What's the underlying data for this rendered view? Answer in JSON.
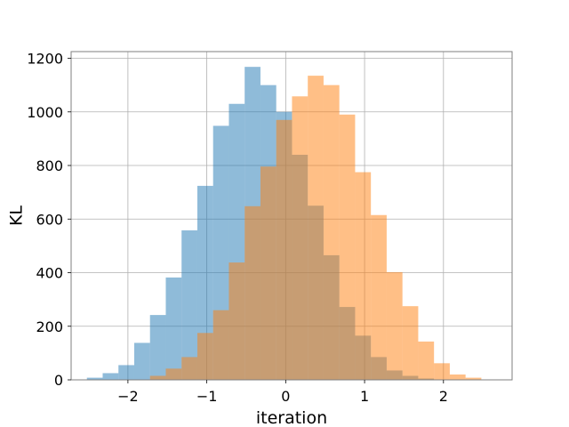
{
  "chart_data": {
    "type": "bar",
    "title": "",
    "xlabel": "iteration",
    "ylabel": "KL",
    "xlim": [
      -2.72,
      2.87
    ],
    "ylim": [
      0,
      1225
    ],
    "xticks": [
      -2,
      -1,
      0,
      1,
      2
    ],
    "xtick_labels": [
      "−2",
      "−1",
      "0",
      "1",
      "2"
    ],
    "yticks": [
      0,
      200,
      400,
      600,
      800,
      1000,
      1200
    ],
    "ytick_labels": [
      "0",
      "200",
      "400",
      "600",
      "800",
      "1000",
      "1200"
    ],
    "grid": true,
    "legend": "none",
    "series": [
      {
        "color": "#1f77b4",
        "opacity": 0.5,
        "bins": [
          {
            "x0": -2.52,
            "x1": -2.32,
            "value": 8
          },
          {
            "x0": -2.32,
            "x1": -2.12,
            "value": 25
          },
          {
            "x0": -2.12,
            "x1": -1.92,
            "value": 55
          },
          {
            "x0": -1.92,
            "x1": -1.72,
            "value": 138
          },
          {
            "x0": -1.72,
            "x1": -1.52,
            "value": 242
          },
          {
            "x0": -1.52,
            "x1": -1.32,
            "value": 382
          },
          {
            "x0": -1.32,
            "x1": -1.12,
            "value": 558
          },
          {
            "x0": -1.12,
            "x1": -0.92,
            "value": 724
          },
          {
            "x0": -0.92,
            "x1": -0.72,
            "value": 948
          },
          {
            "x0": -0.72,
            "x1": -0.52,
            "value": 1030
          },
          {
            "x0": -0.52,
            "x1": -0.32,
            "value": 1168
          },
          {
            "x0": -0.32,
            "x1": -0.12,
            "value": 1100
          },
          {
            "x0": -0.12,
            "x1": 0.08,
            "value": 1000
          },
          {
            "x0": 0.08,
            "x1": 0.28,
            "value": 840
          },
          {
            "x0": 0.28,
            "x1": 0.48,
            "value": 650
          },
          {
            "x0": 0.48,
            "x1": 0.68,
            "value": 465
          },
          {
            "x0": 0.68,
            "x1": 0.88,
            "value": 272
          },
          {
            "x0": 0.88,
            "x1": 1.08,
            "value": 165
          },
          {
            "x0": 1.08,
            "x1": 1.28,
            "value": 85
          },
          {
            "x0": 1.28,
            "x1": 1.48,
            "value": 35
          },
          {
            "x0": 1.48,
            "x1": 1.68,
            "value": 15
          },
          {
            "x0": 1.68,
            "x1": 1.88,
            "value": 5
          }
        ]
      },
      {
        "color": "#ff7f0e",
        "opacity": 0.5,
        "bins": [
          {
            "x0": -1.72,
            "x1": -1.52,
            "value": 15
          },
          {
            "x0": -1.52,
            "x1": -1.32,
            "value": 42
          },
          {
            "x0": -1.32,
            "x1": -1.12,
            "value": 85
          },
          {
            "x0": -1.12,
            "x1": -0.92,
            "value": 175
          },
          {
            "x0": -0.92,
            "x1": -0.72,
            "value": 260
          },
          {
            "x0": -0.72,
            "x1": -0.52,
            "value": 438
          },
          {
            "x0": -0.52,
            "x1": -0.32,
            "value": 648
          },
          {
            "x0": -0.32,
            "x1": -0.12,
            "value": 796
          },
          {
            "x0": -0.12,
            "x1": 0.08,
            "value": 970
          },
          {
            "x0": 0.08,
            "x1": 0.28,
            "value": 1058
          },
          {
            "x0": 0.28,
            "x1": 0.48,
            "value": 1135
          },
          {
            "x0": 0.48,
            "x1": 0.68,
            "value": 1100
          },
          {
            "x0": 0.68,
            "x1": 0.88,
            "value": 990
          },
          {
            "x0": 0.88,
            "x1": 1.08,
            "value": 775
          },
          {
            "x0": 1.08,
            "x1": 1.28,
            "value": 615
          },
          {
            "x0": 1.28,
            "x1": 1.48,
            "value": 402
          },
          {
            "x0": 1.48,
            "x1": 1.68,
            "value": 275
          },
          {
            "x0": 1.68,
            "x1": 1.88,
            "value": 143
          },
          {
            "x0": 1.88,
            "x1": 2.08,
            "value": 62
          },
          {
            "x0": 2.08,
            "x1": 2.28,
            "value": 20
          },
          {
            "x0": 2.28,
            "x1": 2.48,
            "value": 8
          }
        ]
      }
    ]
  }
}
